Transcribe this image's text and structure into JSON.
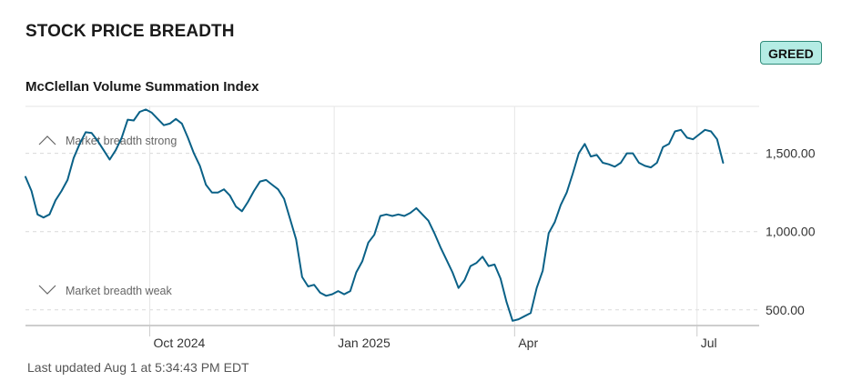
{
  "header": {
    "title": "STOCK PRICE BREADTH",
    "badge": "GREED",
    "subtitle": "McClellan Volume Summation Index",
    "footer": "Last updated Aug 1 at 5:34:43 PM EDT"
  },
  "annotations": {
    "strong": "Market breadth strong",
    "weak": "Market breadth weak"
  },
  "colors": {
    "line": "#0a6187",
    "badge_bg": "#b4ece4",
    "badge_border": "#2e8a79"
  },
  "chart_data": {
    "type": "line",
    "title": "McClellan Volume Summation Index",
    "xlabel": "",
    "ylabel": "",
    "x_range": [
      "2024-07-31",
      "2025-08-01"
    ],
    "ylim": [
      400,
      1800
    ],
    "y_ticks": [
      {
        "value": 500,
        "label": "500.00"
      },
      {
        "value": 1000,
        "label": "1,000.00"
      },
      {
        "value": 1500,
        "label": "1,500.00"
      }
    ],
    "x_ticks": [
      {
        "date": "2024-10-01",
        "label": "Oct 2024"
      },
      {
        "date": "2025-01-01",
        "label": "Jan 2025"
      },
      {
        "date": "2025-04-01",
        "label": "Apr"
      },
      {
        "date": "2025-07-01",
        "label": "Jul"
      }
    ],
    "grid": true,
    "series": [
      {
        "values": [
          [
            "2024-07-31",
            1350
          ],
          [
            "2024-08-03",
            1260
          ],
          [
            "2024-08-06",
            1110
          ],
          [
            "2024-08-09",
            1090
          ],
          [
            "2024-08-12",
            1110
          ],
          [
            "2024-08-15",
            1200
          ],
          [
            "2024-08-18",
            1260
          ],
          [
            "2024-08-21",
            1330
          ],
          [
            "2024-08-24",
            1470
          ],
          [
            "2024-08-27",
            1560
          ],
          [
            "2024-08-30",
            1635
          ],
          [
            "2024-09-02",
            1630
          ],
          [
            "2024-09-05",
            1580
          ],
          [
            "2024-09-08",
            1520
          ],
          [
            "2024-09-11",
            1460
          ],
          [
            "2024-09-14",
            1520
          ],
          [
            "2024-09-17",
            1600
          ],
          [
            "2024-09-20",
            1715
          ],
          [
            "2024-09-23",
            1710
          ],
          [
            "2024-09-26",
            1765
          ],
          [
            "2024-09-29",
            1780
          ],
          [
            "2024-10-02",
            1760
          ],
          [
            "2024-10-05",
            1720
          ],
          [
            "2024-10-08",
            1680
          ],
          [
            "2024-10-11",
            1690
          ],
          [
            "2024-10-14",
            1720
          ],
          [
            "2024-10-17",
            1690
          ],
          [
            "2024-10-20",
            1600
          ],
          [
            "2024-10-23",
            1500
          ],
          [
            "2024-10-26",
            1420
          ],
          [
            "2024-10-29",
            1300
          ],
          [
            "2024-11-01",
            1250
          ],
          [
            "2024-11-04",
            1250
          ],
          [
            "2024-11-07",
            1270
          ],
          [
            "2024-11-10",
            1230
          ],
          [
            "2024-11-13",
            1160
          ],
          [
            "2024-11-16",
            1130
          ],
          [
            "2024-11-19",
            1190
          ],
          [
            "2024-11-22",
            1260
          ],
          [
            "2024-11-25",
            1320
          ],
          [
            "2024-11-28",
            1330
          ],
          [
            "2024-12-01",
            1300
          ],
          [
            "2024-12-04",
            1270
          ],
          [
            "2024-12-07",
            1210
          ],
          [
            "2024-12-10",
            1080
          ],
          [
            "2024-12-13",
            950
          ],
          [
            "2024-12-16",
            710
          ],
          [
            "2024-12-19",
            650
          ],
          [
            "2024-12-22",
            660
          ],
          [
            "2024-12-25",
            610
          ],
          [
            "2024-12-28",
            590
          ],
          [
            "2024-12-31",
            600
          ],
          [
            "2025-01-03",
            620
          ],
          [
            "2025-01-06",
            600
          ],
          [
            "2025-01-09",
            620
          ],
          [
            "2025-01-12",
            740
          ],
          [
            "2025-01-15",
            810
          ],
          [
            "2025-01-18",
            930
          ],
          [
            "2025-01-21",
            980
          ],
          [
            "2025-01-24",
            1100
          ],
          [
            "2025-01-27",
            1110
          ],
          [
            "2025-01-30",
            1100
          ],
          [
            "2025-02-02",
            1110
          ],
          [
            "2025-02-05",
            1100
          ],
          [
            "2025-02-08",
            1120
          ],
          [
            "2025-02-11",
            1150
          ],
          [
            "2025-02-14",
            1110
          ],
          [
            "2025-02-17",
            1070
          ],
          [
            "2025-02-20",
            990
          ],
          [
            "2025-02-23",
            900
          ],
          [
            "2025-02-26",
            820
          ],
          [
            "2025-03-01",
            740
          ],
          [
            "2025-03-04",
            640
          ],
          [
            "2025-03-07",
            690
          ],
          [
            "2025-03-10",
            780
          ],
          [
            "2025-03-13",
            800
          ],
          [
            "2025-03-16",
            840
          ],
          [
            "2025-03-19",
            780
          ],
          [
            "2025-03-22",
            790
          ],
          [
            "2025-03-25",
            700
          ],
          [
            "2025-03-28",
            550
          ],
          [
            "2025-03-31",
            430
          ],
          [
            "2025-04-03",
            440
          ],
          [
            "2025-04-06",
            460
          ],
          [
            "2025-04-09",
            480
          ],
          [
            "2025-04-12",
            640
          ],
          [
            "2025-04-15",
            750
          ],
          [
            "2025-04-18",
            990
          ],
          [
            "2025-04-21",
            1060
          ],
          [
            "2025-04-24",
            1170
          ],
          [
            "2025-04-27",
            1250
          ],
          [
            "2025-04-30",
            1370
          ],
          [
            "2025-05-03",
            1500
          ],
          [
            "2025-05-06",
            1560
          ],
          [
            "2025-05-09",
            1480
          ],
          [
            "2025-05-12",
            1490
          ],
          [
            "2025-05-15",
            1440
          ],
          [
            "2025-05-18",
            1430
          ],
          [
            "2025-05-21",
            1415
          ],
          [
            "2025-05-24",
            1440
          ],
          [
            "2025-05-27",
            1500
          ],
          [
            "2025-05-30",
            1500
          ],
          [
            "2025-06-02",
            1440
          ],
          [
            "2025-06-05",
            1420
          ],
          [
            "2025-06-08",
            1410
          ],
          [
            "2025-06-11",
            1440
          ],
          [
            "2025-06-14",
            1540
          ],
          [
            "2025-06-17",
            1560
          ],
          [
            "2025-06-20",
            1640
          ],
          [
            "2025-06-23",
            1650
          ],
          [
            "2025-06-26",
            1600
          ],
          [
            "2025-06-29",
            1590
          ],
          [
            "2025-07-02",
            1620
          ],
          [
            "2025-07-05",
            1650
          ],
          [
            "2025-07-08",
            1640
          ],
          [
            "2025-07-11",
            1590
          ],
          [
            "2025-07-14",
            1440
          ]
        ]
      }
    ]
  }
}
